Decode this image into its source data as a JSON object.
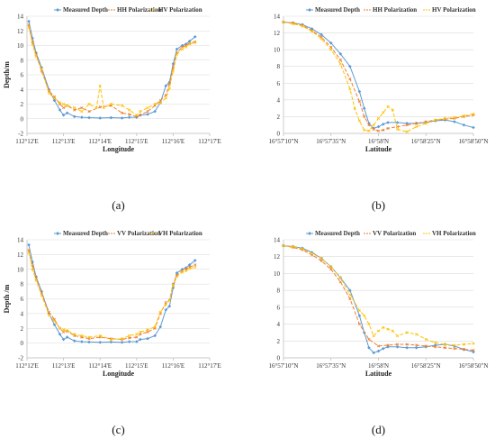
{
  "colors": {
    "measured": "#5b9bd5",
    "second": "#ed7d31",
    "third": "#ffc000",
    "grid": "#d9d9d9",
    "axis": "#bfbfbf"
  },
  "chart_data": [
    {
      "type": "line",
      "panel_label": "(a)",
      "xlabel": "Longitude",
      "ylabel": "Depth/m",
      "ylim": [
        -2,
        14
      ],
      "yticks": [
        "-2",
        "0",
        "2",
        "4",
        "6",
        "8",
        "10",
        "12",
        "14"
      ],
      "xlim": [
        0,
        5
      ],
      "xticks": [
        "112°12'E",
        "112°13'E",
        "112°14'E",
        "112°15'E",
        "112°16'E",
        "112°17'E"
      ],
      "grid": true,
      "legend_position": "top-center",
      "series": [
        {
          "name": "Measured Depth",
          "marker": "diamond",
          "dash": "",
          "x": [
            0.05,
            0.15,
            0.25,
            0.4,
            0.6,
            0.75,
            0.9,
            1.0,
            1.1,
            1.3,
            1.5,
            1.7,
            2.0,
            2.3,
            2.6,
            2.8,
            3.0,
            3.1,
            3.3,
            3.5,
            3.65,
            3.8,
            3.9,
            4.0,
            4.1,
            4.25,
            4.35,
            4.45,
            4.6
          ],
          "values": [
            13.3,
            11.0,
            9.0,
            7.0,
            4.0,
            2.5,
            1.2,
            0.5,
            0.8,
            0.3,
            0.2,
            0.15,
            0.1,
            0.15,
            0.1,
            0.2,
            0.2,
            0.5,
            0.6,
            1.0,
            2.2,
            4.5,
            5.0,
            7.5,
            9.5,
            10.0,
            10.2,
            10.6,
            11.2
          ]
        },
        {
          "name": "HH Polarization",
          "marker": "cross",
          "dash": "4,2",
          "x": [
            0.05,
            0.15,
            0.25,
            0.4,
            0.6,
            0.75,
            0.9,
            1.0,
            1.1,
            1.3,
            1.5,
            1.7,
            2.0,
            2.3,
            2.6,
            2.8,
            3.0,
            3.1,
            3.3,
            3.5,
            3.65,
            3.8,
            3.9,
            4.0,
            4.1,
            4.25,
            4.35,
            4.45,
            4.6
          ],
          "values": [
            12.8,
            10.5,
            8.8,
            6.5,
            3.8,
            3.0,
            2.0,
            1.5,
            1.8,
            1.2,
            1.5,
            1.0,
            1.6,
            1.8,
            0.8,
            0.6,
            0.3,
            0.5,
            1.0,
            1.8,
            2.5,
            3.2,
            4.8,
            7.0,
            9.0,
            9.8,
            10.0,
            10.3,
            10.5
          ]
        },
        {
          "name": "HV Polarization",
          "marker": "cross",
          "dash": "4,2",
          "x": [
            0.05,
            0.15,
            0.25,
            0.4,
            0.6,
            0.75,
            0.9,
            1.0,
            1.1,
            1.3,
            1.5,
            1.7,
            1.9,
            2.0,
            2.1,
            2.3,
            2.6,
            2.8,
            3.0,
            3.1,
            3.3,
            3.5,
            3.65,
            3.8,
            3.9,
            4.0,
            4.1,
            4.25,
            4.35,
            4.45,
            4.6
          ],
          "values": [
            12.5,
            10.2,
            8.5,
            6.8,
            3.5,
            2.8,
            2.2,
            2.0,
            1.8,
            1.5,
            1.0,
            2.0,
            1.5,
            4.5,
            1.5,
            2.0,
            1.8,
            1.2,
            0.5,
            1.0,
            1.5,
            2.0,
            2.2,
            2.8,
            4.2,
            6.5,
            8.8,
            9.5,
            9.8,
            10.2,
            10.4
          ]
        }
      ]
    },
    {
      "type": "line",
      "panel_label": "(b)",
      "xlabel": "Latitude",
      "ylabel": "",
      "ylim": [
        0,
        14
      ],
      "yticks": [
        "0",
        "2",
        "4",
        "6",
        "8",
        "10",
        "12",
        "14"
      ],
      "xlim": [
        0,
        4
      ],
      "xticks": [
        "16°57'10\"N",
        "16°57'35\"N",
        "16°58'N",
        "16°58'25\"N",
        "16°58'50\"N"
      ],
      "grid": true,
      "legend_position": "top-center",
      "series": [
        {
          "name": "Measured Depth",
          "marker": "diamond",
          "dash": "",
          "x": [
            0,
            0.2,
            0.4,
            0.6,
            0.8,
            1.0,
            1.2,
            1.4,
            1.6,
            1.7,
            1.8,
            1.9,
            2.0,
            2.1,
            2.2,
            2.4,
            2.6,
            2.8,
            3.0,
            3.2,
            3.4,
            3.6,
            3.8,
            4.0
          ],
          "values": [
            13.3,
            13.2,
            13.0,
            12.5,
            11.8,
            10.8,
            9.5,
            8.0,
            5.0,
            3.0,
            1.2,
            0.6,
            0.8,
            1.1,
            1.3,
            1.3,
            1.2,
            1.2,
            1.3,
            1.5,
            1.6,
            1.4,
            1.0,
            0.7
          ]
        },
        {
          "name": "HH Polarization",
          "marker": "cross",
          "dash": "4,2",
          "x": [
            0,
            0.2,
            0.4,
            0.6,
            0.8,
            1.0,
            1.2,
            1.4,
            1.6,
            1.7,
            1.8,
            1.9,
            2.0,
            2.1,
            2.2,
            2.4,
            2.6,
            2.8,
            3.0,
            3.2,
            3.4,
            3.6,
            3.8,
            4.0
          ],
          "values": [
            13.3,
            13.2,
            12.9,
            12.3,
            11.5,
            10.3,
            8.8,
            6.5,
            3.8,
            2.0,
            1.0,
            0.5,
            0.3,
            0.4,
            0.6,
            0.8,
            1.0,
            1.2,
            1.4,
            1.6,
            1.7,
            1.8,
            2.0,
            2.2
          ]
        },
        {
          "name": "HV Polarization",
          "marker": "cross",
          "dash": "4,2",
          "x": [
            0,
            0.2,
            0.4,
            0.6,
            0.8,
            1.0,
            1.2,
            1.4,
            1.5,
            1.6,
            1.7,
            1.8,
            1.9,
            2.0,
            2.1,
            2.2,
            2.3,
            2.4,
            2.6,
            2.8,
            3.0,
            3.2,
            3.4,
            3.6,
            3.8,
            4.0
          ],
          "values": [
            13.3,
            13.1,
            12.8,
            12.2,
            11.3,
            10.0,
            8.3,
            5.3,
            3.0,
            1.5,
            0.4,
            0.3,
            1.0,
            1.8,
            2.5,
            3.2,
            2.8,
            0.5,
            0.2,
            0.8,
            1.2,
            1.6,
            1.8,
            1.9,
            2.1,
            2.3
          ]
        }
      ]
    },
    {
      "type": "line",
      "panel_label": "(c)",
      "xlabel": "Longitude",
      "ylabel": "Depth /m",
      "ylim": [
        -2,
        14
      ],
      "yticks": [
        "-2",
        "0",
        "2",
        "4",
        "6",
        "8",
        "10",
        "12",
        "14"
      ],
      "xlim": [
        0,
        5
      ],
      "xticks": [
        "112°12'E",
        "112°13'E",
        "112°14'E",
        "112°15'E",
        "112°16'E",
        "112°17'E"
      ],
      "grid": true,
      "legend_position": "top-center",
      "series": [
        {
          "name": "Measured Depth",
          "marker": "diamond",
          "dash": "",
          "x": [
            0.05,
            0.15,
            0.25,
            0.4,
            0.6,
            0.75,
            0.9,
            1.0,
            1.1,
            1.3,
            1.5,
            1.7,
            2.0,
            2.3,
            2.6,
            2.8,
            3.0,
            3.1,
            3.3,
            3.5,
            3.65,
            3.8,
            3.9,
            4.0,
            4.1,
            4.25,
            4.35,
            4.45,
            4.6
          ],
          "values": [
            13.3,
            11.0,
            9.0,
            7.0,
            4.0,
            2.5,
            1.2,
            0.5,
            0.8,
            0.3,
            0.2,
            0.15,
            0.1,
            0.15,
            0.1,
            0.2,
            0.2,
            0.5,
            0.6,
            1.0,
            2.2,
            4.5,
            5.0,
            7.5,
            9.5,
            10.0,
            10.2,
            10.6,
            11.2
          ]
        },
        {
          "name": "VV Polarization",
          "marker": "cross",
          "dash": "4,2",
          "x": [
            0.05,
            0.15,
            0.25,
            0.4,
            0.6,
            0.75,
            0.9,
            1.0,
            1.1,
            1.3,
            1.5,
            1.7,
            2.0,
            2.3,
            2.6,
            2.8,
            3.0,
            3.1,
            3.3,
            3.5,
            3.65,
            3.8,
            3.9,
            4.0,
            4.1,
            4.25,
            4.35,
            4.45,
            4.6
          ],
          "values": [
            12.6,
            10.5,
            8.8,
            6.8,
            4.2,
            3.2,
            2.0,
            1.5,
            1.6,
            1.0,
            0.8,
            0.6,
            0.8,
            0.6,
            0.5,
            0.7,
            0.8,
            1.2,
            1.5,
            2.0,
            4.0,
            5.5,
            5.8,
            8.0,
            9.2,
            9.8,
            10.0,
            10.3,
            10.6
          ]
        },
        {
          "name": "VH Polarization",
          "marker": "cross",
          "dash": "4,2",
          "x": [
            0.05,
            0.15,
            0.25,
            0.4,
            0.6,
            0.75,
            0.9,
            1.0,
            1.1,
            1.3,
            1.5,
            1.7,
            2.0,
            2.3,
            2.6,
            2.8,
            3.0,
            3.1,
            3.3,
            3.5,
            3.65,
            3.8,
            3.9,
            4.0,
            4.1,
            4.25,
            4.35,
            4.45,
            4.6
          ],
          "values": [
            12.3,
            10.0,
            8.5,
            6.5,
            3.8,
            3.0,
            2.0,
            1.8,
            1.7,
            1.2,
            1.0,
            0.8,
            1.0,
            0.5,
            0.6,
            1.0,
            1.2,
            1.5,
            1.8,
            2.2,
            4.2,
            5.2,
            5.8,
            7.8,
            9.0,
            9.6,
            9.8,
            10.1,
            10.3
          ]
        }
      ]
    },
    {
      "type": "line",
      "panel_label": "(d)",
      "xlabel": "Latitude",
      "ylabel": "",
      "ylim": [
        0,
        14
      ],
      "yticks": [
        "0",
        "2",
        "4",
        "6",
        "8",
        "10",
        "12",
        "14"
      ],
      "xlim": [
        0,
        4
      ],
      "xticks": [
        "16°57'10\"N",
        "16°57'35\"N",
        "16°58'N",
        "16°58'25\"N",
        "16°58'50\"N"
      ],
      "grid": true,
      "legend_position": "top-center",
      "series": [
        {
          "name": "Measured Depth",
          "marker": "diamond",
          "dash": "",
          "x": [
            0,
            0.2,
            0.4,
            0.6,
            0.8,
            1.0,
            1.2,
            1.4,
            1.6,
            1.7,
            1.8,
            1.9,
            2.0,
            2.1,
            2.2,
            2.4,
            2.6,
            2.8,
            3.0,
            3.2,
            3.4,
            3.6,
            3.8,
            4.0
          ],
          "values": [
            13.3,
            13.2,
            13.0,
            12.5,
            11.8,
            10.8,
            9.5,
            8.0,
            5.0,
            3.0,
            1.2,
            0.6,
            0.8,
            1.1,
            1.3,
            1.3,
            1.2,
            1.2,
            1.3,
            1.5,
            1.6,
            1.4,
            1.0,
            0.7
          ]
        },
        {
          "name": "VV Polarization",
          "marker": "cross",
          "dash": "4,2",
          "x": [
            0,
            0.2,
            0.4,
            0.6,
            0.8,
            1.0,
            1.2,
            1.4,
            1.6,
            1.8,
            2.0,
            2.2,
            2.4,
            2.6,
            2.8,
            3.0,
            3.2,
            3.4,
            3.6,
            3.8,
            4.0
          ],
          "values": [
            13.3,
            13.1,
            12.8,
            12.2,
            11.5,
            10.5,
            9.0,
            7.0,
            4.0,
            2.2,
            1.4,
            1.5,
            1.6,
            1.6,
            1.5,
            1.4,
            1.3,
            1.2,
            1.1,
            1.0,
            0.9
          ]
        },
        {
          "name": "VH Polarization",
          "marker": "cross",
          "dash": "4,2",
          "x": [
            0,
            0.2,
            0.4,
            0.6,
            0.8,
            1.0,
            1.2,
            1.4,
            1.6,
            1.7,
            1.8,
            1.9,
            2.0,
            2.1,
            2.2,
            2.3,
            2.4,
            2.6,
            2.8,
            3.0,
            3.2,
            3.4,
            3.6,
            3.8,
            4.0
          ],
          "values": [
            13.3,
            13.2,
            12.9,
            12.4,
            11.8,
            10.8,
            9.5,
            7.5,
            5.6,
            5.0,
            4.0,
            2.6,
            3.2,
            3.6,
            3.4,
            3.2,
            2.6,
            3.0,
            2.8,
            2.2,
            1.8,
            1.6,
            1.5,
            1.6,
            1.7
          ]
        }
      ]
    }
  ]
}
